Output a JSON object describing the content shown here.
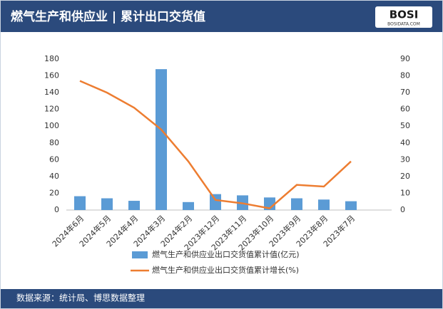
{
  "chart_data": {
    "type": "bar_line",
    "title": "燃气生产和供应业 | 累计出口交货值",
    "logo": "BOSI",
    "logo_sub": "BOSIDATA.COM",
    "source": "数据来源：统计局、博思数据整理",
    "categories": [
      "2024年6月",
      "2024年5月",
      "2024年4月",
      "2024年3月",
      "2024年2月",
      "2023年12月",
      "2023年11月",
      "2023年10月",
      "2023年9月",
      "2023年8月",
      "2023年7月",
      null
    ],
    "series": [
      {
        "name": "燃气生产和供应业出口交货值累计值(亿元)",
        "color": "#5b9bd5",
        "kind": "bar",
        "values": [
          16.5,
          14,
          11,
          168,
          9.5,
          19,
          17.5,
          15,
          14,
          12.5,
          10.5,
          null
        ]
      },
      {
        "name": "燃气生产和供应业出口交货值累计增长(%)",
        "color": "#ed7d31",
        "kind": "line",
        "axis": "y2",
        "values": [
          77,
          70,
          61,
          48,
          29,
          6,
          4,
          1,
          15,
          14,
          29,
          null
        ]
      }
    ],
    "ylim": [
      0,
      180
    ],
    "yticks": [
      0,
      20,
      40,
      60,
      80,
      100,
      120,
      140,
      160,
      180
    ],
    "y2lim": [
      0,
      90
    ],
    "y2ticks": [
      0,
      10,
      20,
      30,
      40,
      50,
      60,
      70,
      80,
      90
    ]
  }
}
